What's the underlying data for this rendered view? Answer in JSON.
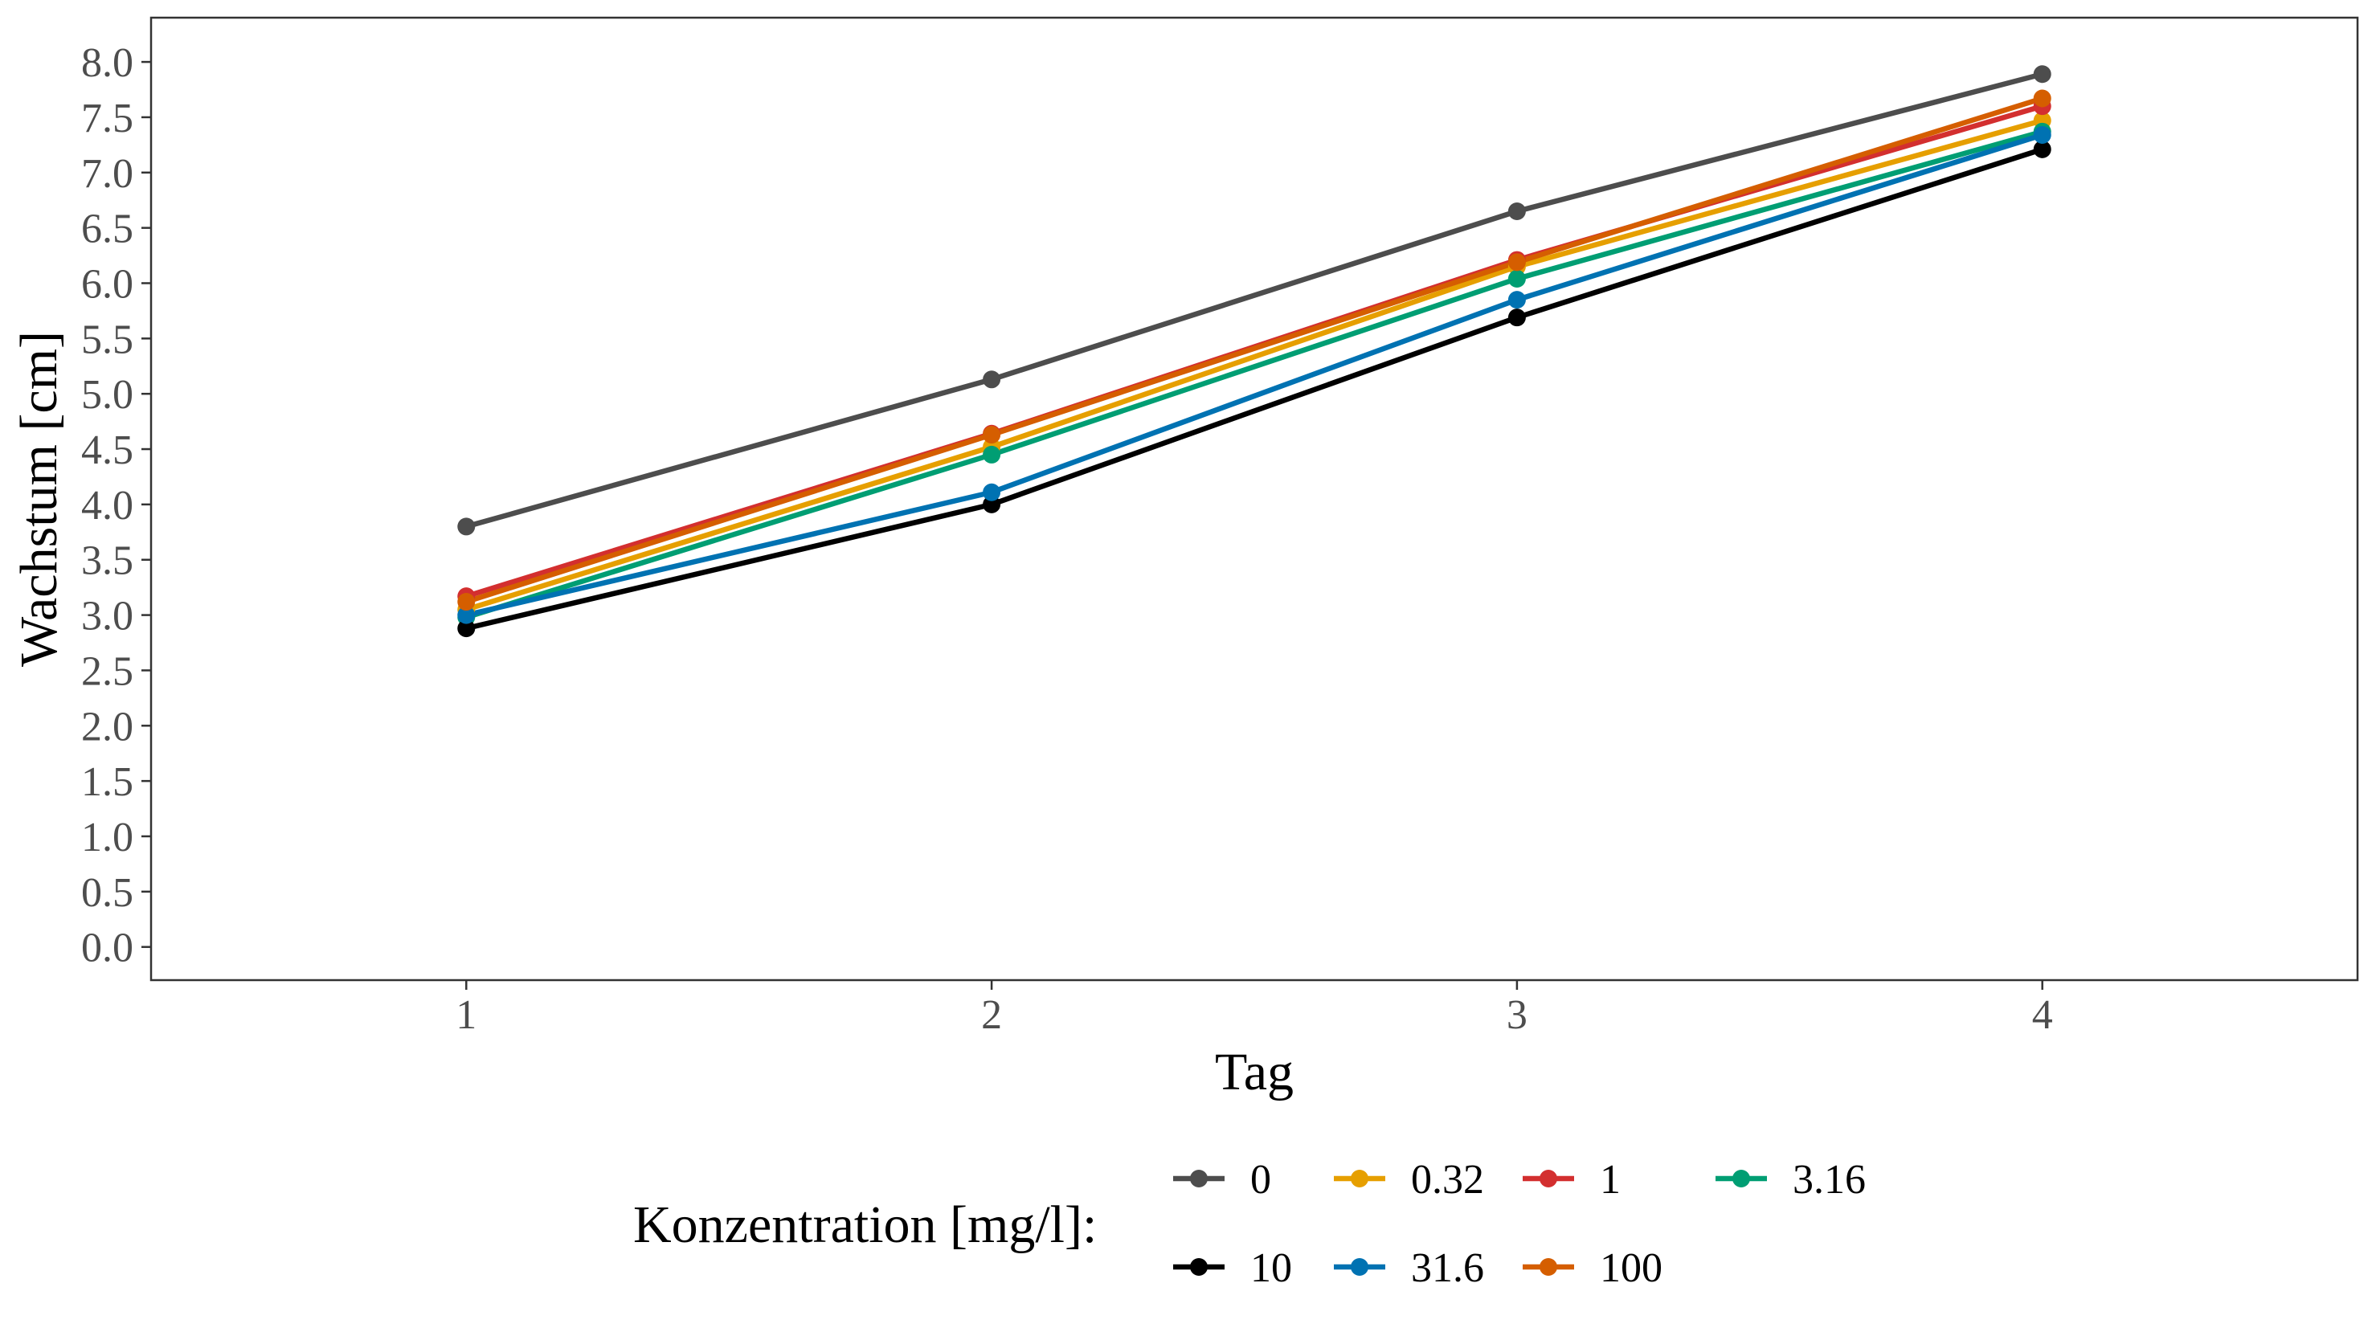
{
  "chart_data": {
    "type": "line",
    "title": "",
    "xlabel": "Tag",
    "ylabel": "Wachstum [cm]",
    "x": [
      1,
      2,
      3,
      4
    ],
    "x_tick_labels": [
      "1",
      "2",
      "3",
      "4"
    ],
    "xlim": [
      0.4,
      4.6
    ],
    "ylim": [
      -0.3,
      8.4
    ],
    "y_ticks": [
      0.0,
      0.5,
      1.0,
      1.5,
      2.0,
      2.5,
      3.0,
      3.5,
      4.0,
      4.5,
      5.0,
      5.5,
      6.0,
      6.5,
      7.0,
      7.5,
      8.0
    ],
    "y_tick_labels": [
      "0.0",
      "0.5",
      "1.0",
      "1.5",
      "2.0",
      "2.5",
      "3.0",
      "3.5",
      "4.0",
      "4.5",
      "5.0",
      "5.5",
      "6.0",
      "6.5",
      "7.0",
      "7.5",
      "8.0"
    ],
    "grid": false,
    "legend": {
      "title": "Konzentration [mg/l]:",
      "position": "bottom"
    },
    "series": [
      {
        "name": "0",
        "color": "#4d4d4d",
        "values": [
          3.8,
          5.13,
          6.65,
          7.89
        ]
      },
      {
        "name": "0.32",
        "color": "#E69F00",
        "values": [
          3.05,
          4.52,
          6.15,
          7.47
        ]
      },
      {
        "name": "1",
        "color": "#D32F2F",
        "values": [
          3.17,
          4.64,
          6.21,
          7.6
        ]
      },
      {
        "name": "3.16",
        "color": "#009E73",
        "values": [
          2.98,
          4.45,
          6.04,
          7.37
        ]
      },
      {
        "name": "10",
        "color": "#000000",
        "values": [
          2.88,
          4.0,
          5.69,
          7.21
        ]
      },
      {
        "name": "31.6",
        "color": "#0072B2",
        "values": [
          3.0,
          4.11,
          5.85,
          7.34
        ]
      },
      {
        "name": "100",
        "color": "#D55E00",
        "values": [
          3.12,
          4.63,
          6.19,
          7.67
        ]
      }
    ]
  }
}
